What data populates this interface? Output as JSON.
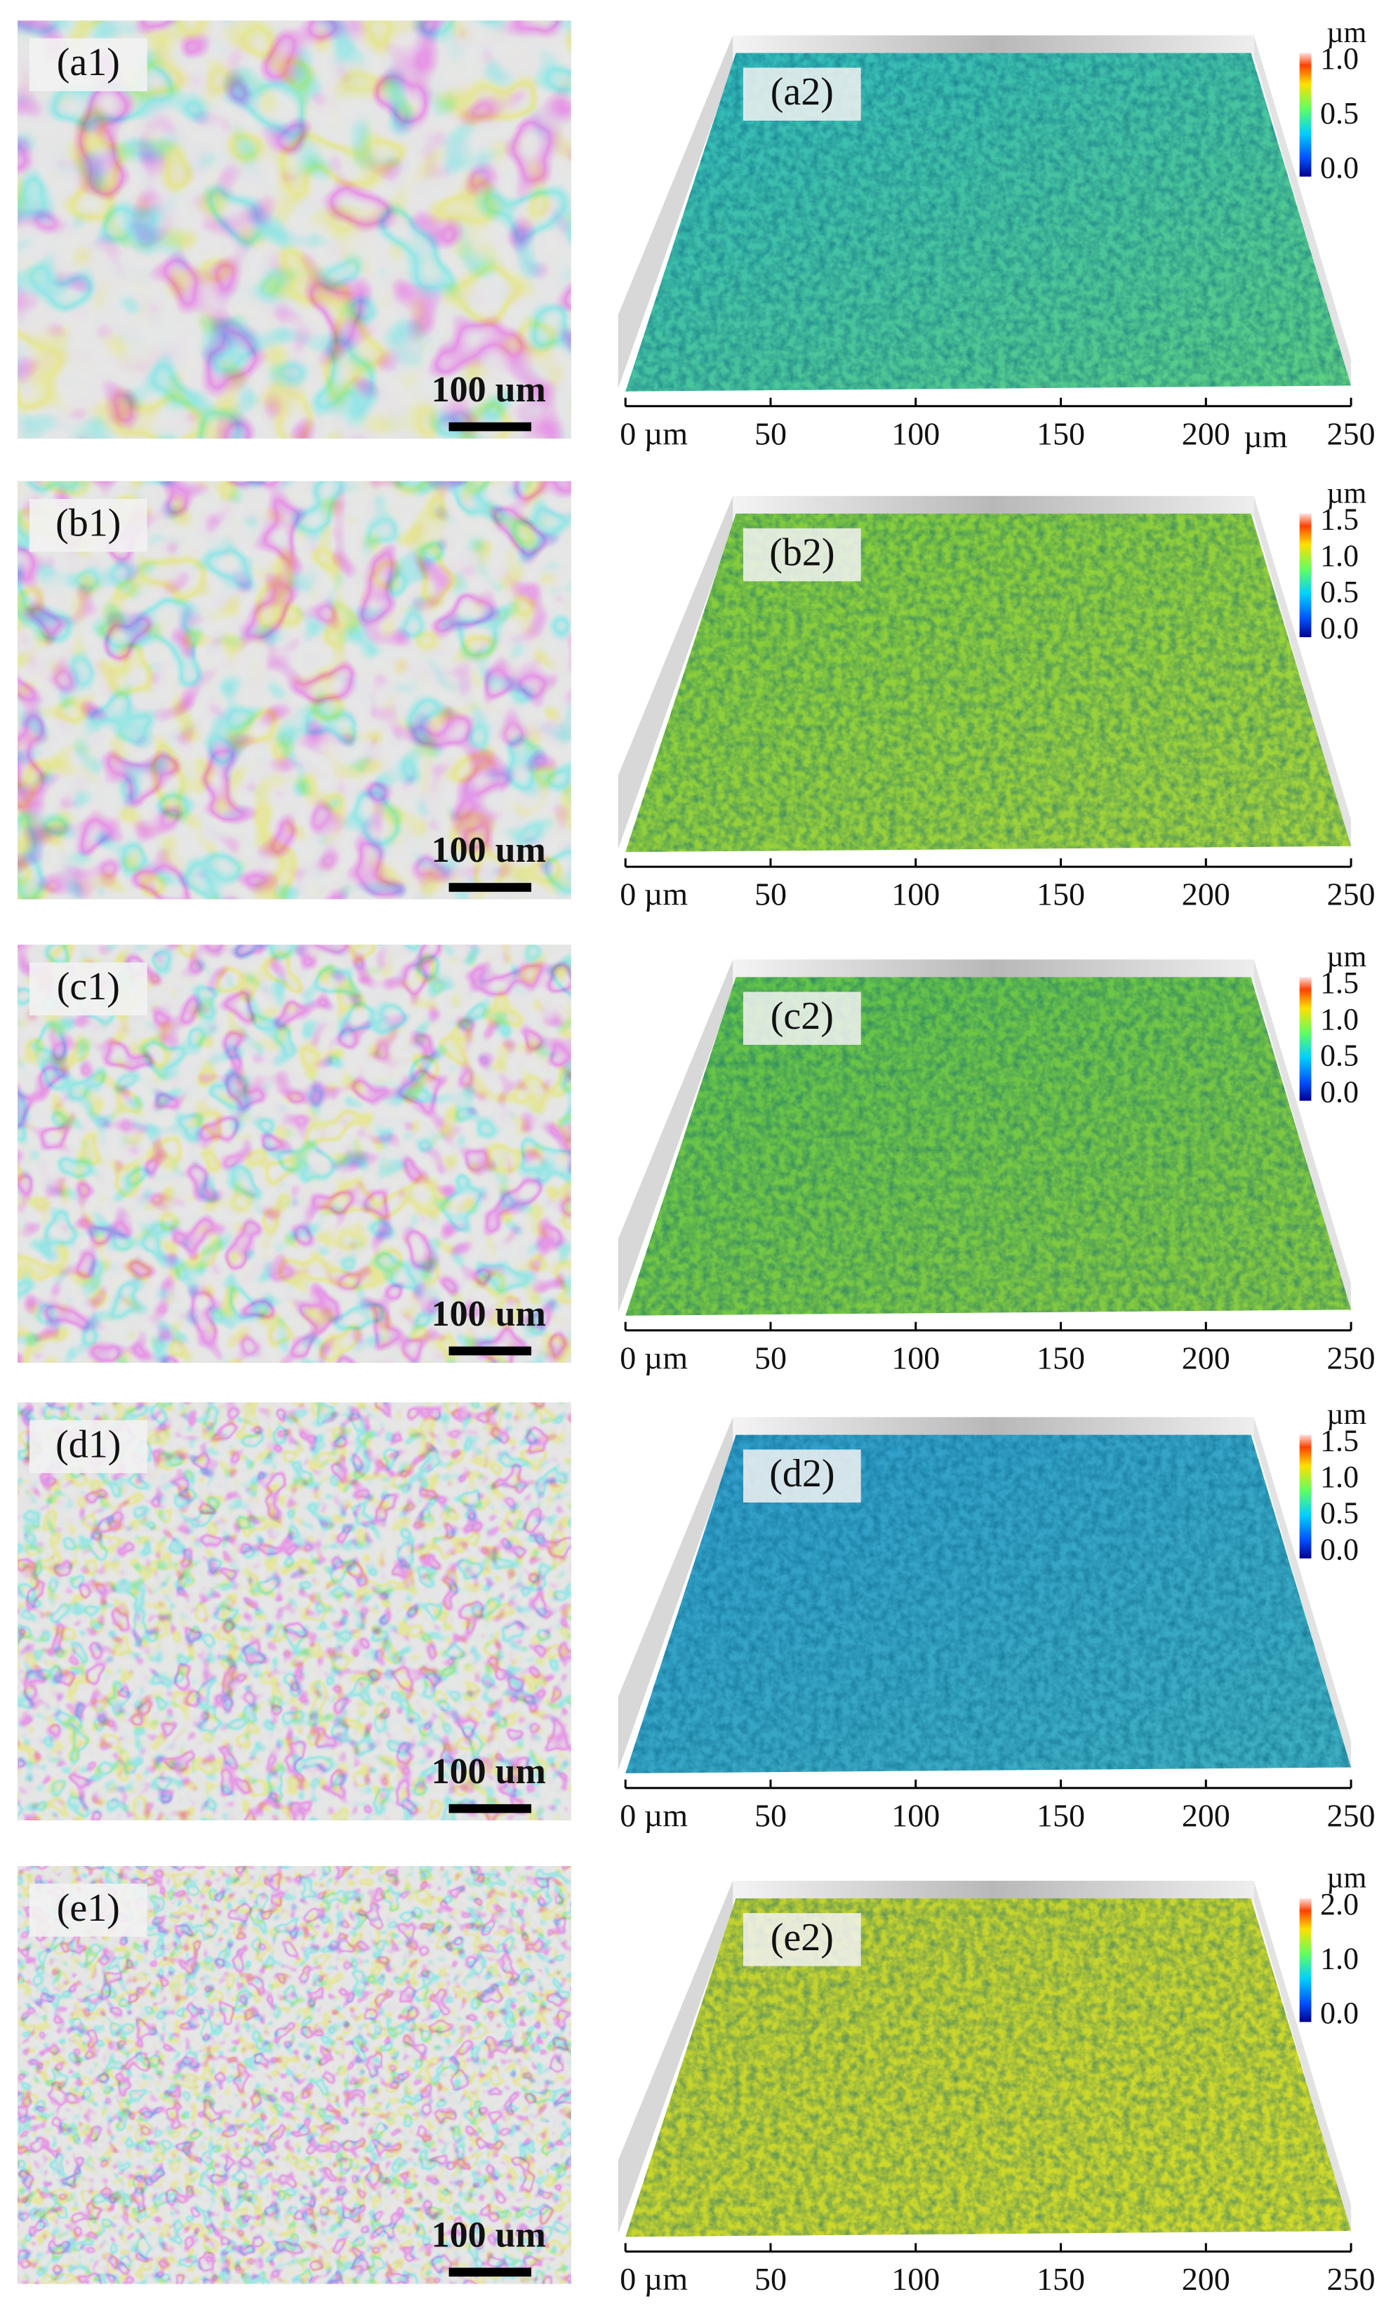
{
  "panels": [
    {
      "micrograph": {
        "label": "(a1)",
        "scale_bar": "100 um"
      },
      "profile": {
        "label": "(a2)",
        "colorbar": {
          "unit": "µm",
          "ticks": [
            "1.0",
            "0.5",
            "0.0"
          ]
        },
        "x_axis": {
          "ticks": [
            "0 µm",
            "50",
            "100",
            "150",
            "200",
            "250"
          ],
          "unit": "µm"
        }
      }
    },
    {
      "micrograph": {
        "label": "(b1)",
        "scale_bar": "100 um"
      },
      "profile": {
        "label": "(b2)",
        "colorbar": {
          "unit": "µm",
          "ticks": [
            "1.5",
            "1.0",
            "0.5",
            "0.0"
          ]
        },
        "x_axis": {
          "ticks": [
            "0 µm",
            "50",
            "100",
            "150",
            "200",
            "250"
          ]
        }
      }
    },
    {
      "micrograph": {
        "label": "(c1)",
        "scale_bar": "100 um"
      },
      "profile": {
        "label": "(c2)",
        "colorbar": {
          "unit": "µm",
          "ticks": [
            "1.5",
            "1.0",
            "0.5",
            "0.0"
          ]
        },
        "x_axis": {
          "ticks": [
            "0 µm",
            "50",
            "100",
            "150",
            "200",
            "250"
          ]
        }
      }
    },
    {
      "micrograph": {
        "label": "(d1)",
        "scale_bar": "100 um"
      },
      "profile": {
        "label": "(d2)",
        "colorbar": {
          "unit": "µm",
          "ticks": [
            "1.5",
            "1.0",
            "0.5",
            "0.0"
          ]
        },
        "x_axis": {
          "ticks": [
            "0 µm",
            "50",
            "100",
            "150",
            "200",
            "250"
          ]
        }
      }
    },
    {
      "micrograph": {
        "label": "(e1)",
        "scale_bar": "100 um"
      },
      "profile": {
        "label": "(e2)",
        "colorbar": {
          "unit": "µm",
          "ticks": [
            "2.0",
            "1.0",
            "0.0"
          ]
        },
        "x_axis": {
          "ticks": [
            "0 µm",
            "50",
            "100",
            "150",
            "200",
            "250"
          ]
        }
      }
    }
  ]
}
